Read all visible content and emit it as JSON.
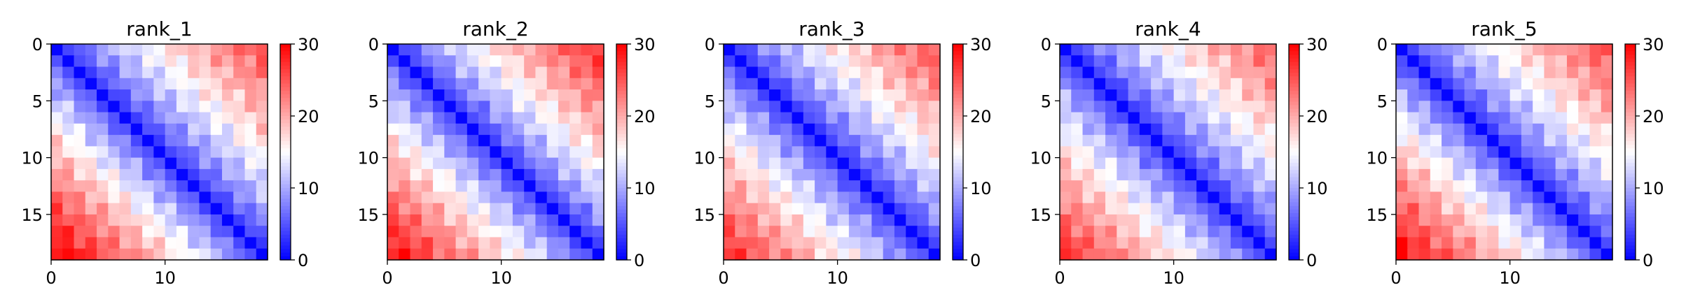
{
  "chart_data": [
    {
      "type": "heatmap",
      "title": "rank_1",
      "rows": 19,
      "cols": 19,
      "diagonal_band": 1.0,
      "lower_max": 30,
      "upper_max": 25,
      "xticks": [
        0,
        10
      ],
      "yticks": [
        0,
        5,
        10,
        15
      ],
      "clim": [
        0,
        30
      ],
      "colorbar_ticks": [
        0,
        10,
        20,
        30
      ],
      "colormap": "bwr",
      "ylim": [
        0,
        19
      ]
    },
    {
      "type": "heatmap",
      "title": "rank_2",
      "rows": 19,
      "cols": 19,
      "diagonal_band": 1.0,
      "lower_max": 29,
      "upper_max": 27,
      "xticks": [
        0,
        10
      ],
      "yticks": [
        0,
        5,
        10,
        15
      ],
      "clim": [
        0,
        30
      ],
      "colorbar_ticks": [
        0,
        10,
        20,
        30
      ],
      "colormap": "bwr",
      "ylim": [
        0,
        19
      ]
    },
    {
      "type": "heatmap",
      "title": "rank_3",
      "rows": 19,
      "cols": 19,
      "diagonal_band": 1.0,
      "lower_max": 27,
      "upper_max": 25,
      "xticks": [
        0,
        10
      ],
      "yticks": [
        0,
        5,
        10,
        15
      ],
      "clim": [
        0,
        30
      ],
      "colorbar_ticks": [
        0,
        10,
        20,
        30
      ],
      "colormap": "bwr",
      "ylim": [
        0,
        19
      ]
    },
    {
      "type": "heatmap",
      "title": "rank_4",
      "rows": 19,
      "cols": 19,
      "diagonal_band": 1.0,
      "lower_max": 27,
      "upper_max": 24,
      "xticks": [
        0,
        10
      ],
      "yticks": [
        0,
        5,
        10,
        15
      ],
      "clim": [
        0,
        30
      ],
      "colorbar_ticks": [
        0,
        10,
        20,
        30
      ],
      "colormap": "bwr",
      "ylim": [
        0,
        19
      ]
    },
    {
      "type": "heatmap",
      "title": "rank_5",
      "rows": 19,
      "cols": 19,
      "diagonal_band": 1.0,
      "lower_max": 29,
      "upper_max": 25,
      "xticks": [
        0,
        10
      ],
      "yticks": [
        0,
        5,
        10,
        15
      ],
      "clim": [
        0,
        30
      ],
      "colorbar_ticks": [
        0,
        10,
        20,
        30
      ],
      "colormap": "bwr",
      "ylim": [
        0,
        19
      ]
    }
  ]
}
